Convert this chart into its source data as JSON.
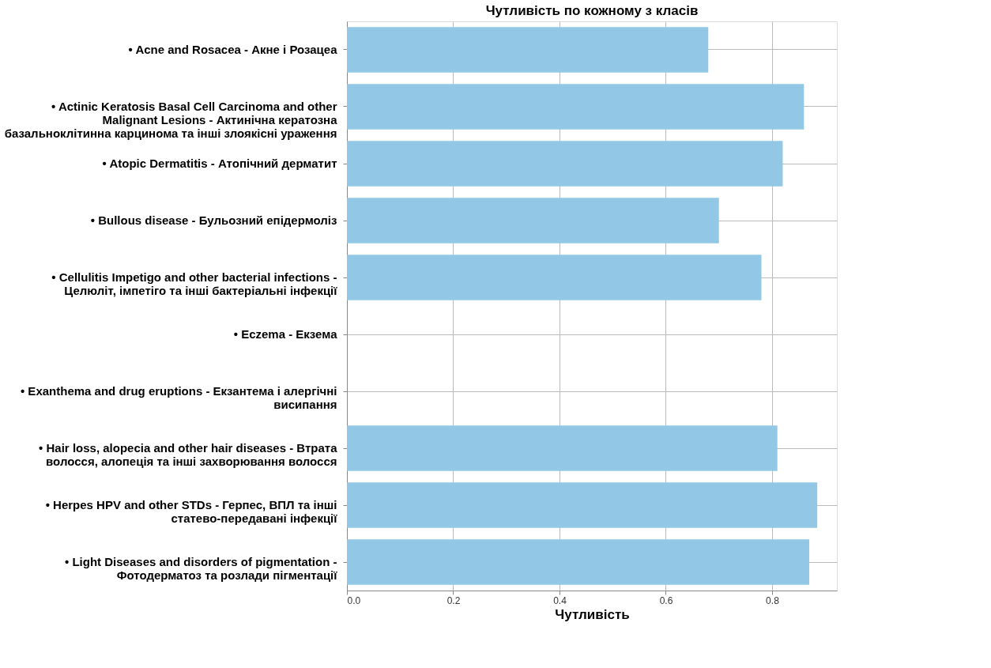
{
  "chart_data": {
    "type": "bar",
    "orientation": "horizontal",
    "title": "Чутливість по кожному з класів",
    "xlabel": "Чутливість",
    "categories": [
      "• Acne and Rosacea - Акне і Розацеа",
      "• Actinic Keratosis Basal Cell Carcinoma and other Malignant Lesions - Актинічна кератозна базальноклітинна карцинома та інші злоякісні ураження",
      "• Atopic Dermatitis - Атопічний дерматит",
      "• Bullous disease - Бульозний епідермоліз",
      "• Cellulitis Impetigo and other bacterial infections - Целюліт, імпетіго та інші бактеріальні інфекції",
      "• Eczema - Екзема",
      "• Exanthema and drug eruptions - Екзантема і алергічні висипання",
      "• Hair loss, alopecia and other hair diseases - Втрата волосся, алопеція та інші захворювання волосся",
      "• Herpes HPV and other STDs - Герпес, ВПЛ та інші статево-передавані інфекції",
      "• Light Diseases and disorders of pigmentation - Фотодерматоз та розлади пігментації"
    ],
    "values": [
      0.68,
      0.86,
      0.82,
      0.7,
      0.78,
      0,
      0,
      0.81,
      0.885,
      0.87
    ],
    "color": "#92c8e6",
    "xlim": [
      0,
      0.922
    ],
    "xticks": [
      {
        "value": 0,
        "label": "0.0"
      },
      {
        "value": 0.2,
        "label": "0.2"
      },
      {
        "value": 0.4,
        "label": "0.4"
      },
      {
        "value": 0.6,
        "label": "0.6"
      },
      {
        "value": 0.8,
        "label": "0.8"
      }
    ],
    "grid": true
  }
}
